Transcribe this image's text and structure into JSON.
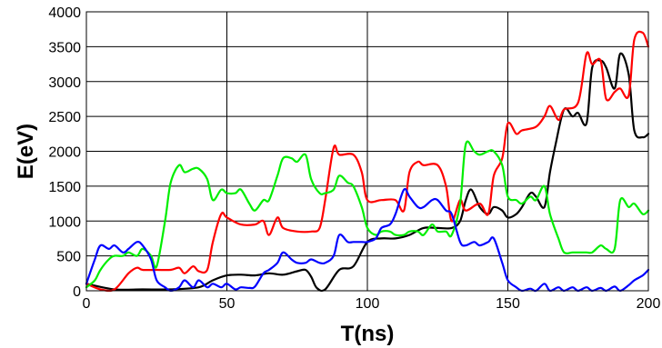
{
  "chart_data": {
    "type": "line",
    "xlabel": "T(ns)",
    "ylabel": "E(eV)",
    "xlim": [
      0,
      200
    ],
    "ylim": [
      0,
      4000
    ],
    "xticks": [
      0,
      50,
      100,
      150,
      200
    ],
    "yticks": [
      0,
      500,
      1000,
      1500,
      2000,
      2500,
      3000,
      3500,
      4000
    ],
    "grid": true,
    "series": [
      {
        "color": "#000000",
        "x": [
          0,
          10,
          20,
          30,
          40,
          45,
          50,
          55,
          60,
          65,
          70,
          75,
          78,
          80,
          82,
          85,
          90,
          95,
          100,
          105,
          110,
          115,
          120,
          125,
          130,
          133,
          135,
          137,
          140,
          143,
          145,
          148,
          150,
          153,
          155,
          158,
          160,
          163,
          165,
          167,
          170,
          173,
          175,
          178,
          180,
          183,
          185,
          188,
          190,
          193,
          195,
          198,
          200
        ],
        "y": [
          100,
          20,
          20,
          20,
          50,
          150,
          220,
          230,
          220,
          250,
          230,
          280,
          300,
          200,
          40,
          20,
          300,
          350,
          700,
          750,
          750,
          800,
          900,
          900,
          900,
          1000,
          1300,
          1450,
          1200,
          1100,
          1200,
          1150,
          1050,
          1100,
          1200,
          1400,
          1350,
          1200,
          1700,
          2100,
          2600,
          2500,
          2550,
          2400,
          3200,
          3300,
          3200,
          2900,
          3400,
          3100,
          2300,
          2200,
          2250
        ]
      },
      {
        "color": "#ff0000",
        "x": [
          0,
          5,
          10,
          15,
          18,
          20,
          25,
          30,
          33,
          35,
          38,
          40,
          43,
          45,
          48,
          50,
          55,
          60,
          63,
          65,
          68,
          70,
          75,
          80,
          83,
          85,
          88,
          90,
          95,
          98,
          100,
          105,
          110,
          113,
          115,
          118,
          120,
          125,
          128,
          130,
          133,
          135,
          140,
          143,
          145,
          148,
          150,
          153,
          155,
          160,
          163,
          165,
          168,
          170,
          175,
          178,
          180,
          183,
          185,
          188,
          190,
          193,
          195,
          198,
          200
        ],
        "y": [
          100,
          20,
          20,
          250,
          330,
          300,
          300,
          300,
          330,
          250,
          350,
          280,
          300,
          700,
          1100,
          1050,
          950,
          950,
          1000,
          800,
          1050,
          900,
          850,
          850,
          900,
          1300,
          2050,
          1950,
          1950,
          1700,
          1300,
          1300,
          1300,
          1150,
          1700,
          1850,
          1800,
          1800,
          1500,
          1000,
          1300,
          1150,
          1250,
          1100,
          1650,
          1900,
          2400,
          2250,
          2300,
          2350,
          2500,
          2650,
          2450,
          2600,
          2700,
          3400,
          3250,
          3300,
          2750,
          2850,
          2900,
          2800,
          3600,
          3700,
          3500
        ]
      },
      {
        "color": "#00ee00",
        "x": [
          0,
          3,
          5,
          8,
          10,
          13,
          15,
          18,
          20,
          23,
          25,
          28,
          30,
          33,
          35,
          38,
          40,
          43,
          45,
          48,
          50,
          53,
          55,
          58,
          60,
          63,
          65,
          68,
          70,
          73,
          75,
          78,
          80,
          83,
          85,
          88,
          90,
          93,
          95,
          98,
          100,
          103,
          105,
          108,
          110,
          113,
          115,
          118,
          120,
          123,
          125,
          128,
          130,
          133,
          135,
          138,
          140,
          143,
          145,
          148,
          150,
          153,
          155,
          158,
          160,
          163,
          165,
          168,
          170,
          173,
          175,
          178,
          180,
          183,
          185,
          188,
          190,
          193,
          195,
          198,
          200
        ],
        "y": [
          50,
          150,
          300,
          450,
          500,
          500,
          550,
          500,
          600,
          500,
          350,
          1000,
          1550,
          1800,
          1700,
          1750,
          1750,
          1600,
          1300,
          1450,
          1400,
          1400,
          1450,
          1250,
          1150,
          1300,
          1300,
          1650,
          1900,
          1900,
          1850,
          1950,
          1600,
          1400,
          1400,
          1450,
          1650,
          1550,
          1500,
          1200,
          900,
          800,
          850,
          850,
          800,
          800,
          850,
          850,
          800,
          950,
          850,
          850,
          800,
          1250,
          2100,
          2000,
          1950,
          2000,
          2000,
          1800,
          1350,
          1300,
          1250,
          1350,
          1300,
          1500,
          1100,
          750,
          550,
          550,
          550,
          550,
          550,
          650,
          600,
          600,
          1300,
          1200,
          1250,
          1100,
          1150
        ]
      },
      {
        "color": "#0000ff",
        "x": [
          0,
          3,
          5,
          8,
          10,
          13,
          15,
          18,
          20,
          23,
          25,
          28,
          30,
          33,
          35,
          38,
          40,
          43,
          45,
          48,
          50,
          53,
          55,
          58,
          60,
          63,
          65,
          68,
          70,
          73,
          75,
          78,
          80,
          83,
          85,
          88,
          90,
          93,
          95,
          98,
          100,
          103,
          105,
          108,
          110,
          113,
          115,
          118,
          120,
          123,
          125,
          128,
          130,
          133,
          135,
          138,
          140,
          143,
          145,
          148,
          150,
          153,
          155,
          158,
          160,
          163,
          165,
          168,
          170,
          173,
          175,
          178,
          180,
          183,
          185,
          188,
          190,
          193,
          195,
          198,
          200
        ],
        "y": [
          100,
          450,
          650,
          600,
          650,
          550,
          600,
          700,
          650,
          450,
          150,
          50,
          0,
          50,
          150,
          50,
          150,
          50,
          100,
          50,
          100,
          20,
          50,
          40,
          60,
          250,
          300,
          400,
          550,
          450,
          400,
          400,
          450,
          400,
          400,
          500,
          800,
          700,
          700,
          700,
          700,
          750,
          900,
          950,
          1100,
          1450,
          1350,
          1200,
          1200,
          1300,
          1300,
          1150,
          1100,
          700,
          650,
          700,
          650,
          700,
          750,
          400,
          150,
          50,
          0,
          30,
          0,
          100,
          0,
          50,
          0,
          50,
          0,
          50,
          0,
          40,
          0,
          60,
          0,
          80,
          150,
          220,
          300
        ]
      }
    ]
  }
}
